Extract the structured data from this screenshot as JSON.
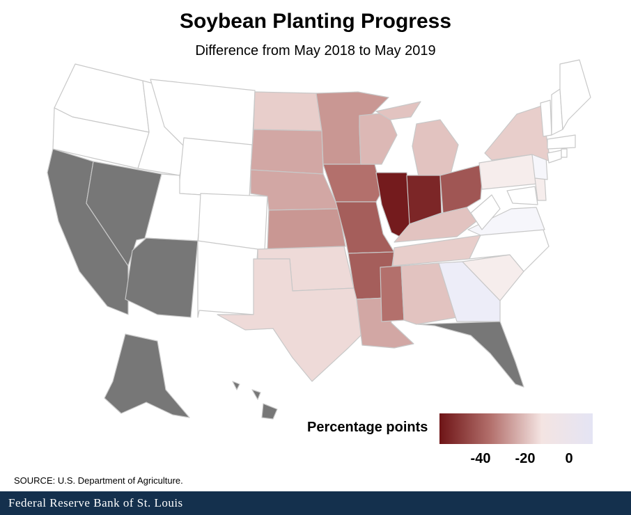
{
  "title": "Soybean Planting Progress",
  "subtitle": "Difference from May 2018 to May 2019",
  "legend": {
    "title": "Percentage points",
    "ticks": [
      "-40",
      "-20",
      "0"
    ],
    "colors": [
      "#6e1416",
      "#b3706c",
      "#f4e4e2",
      "#e4e4f4"
    ]
  },
  "source": "SOURCE: U.S. Department of Agriculture.",
  "footer": {
    "brand": "Federal Reserve Bank of St. Louis"
  },
  "colors": {
    "no_data": "#777777",
    "zero": "#ffffff",
    "footer_bg": "#14304d"
  },
  "chart_data": {
    "type": "choropleth",
    "metric": "Percentage points",
    "states": [
      {
        "state": "ND",
        "value": -8
      },
      {
        "state": "SD",
        "value": -15
      },
      {
        "state": "NE",
        "value": -15
      },
      {
        "state": "KS",
        "value": -18
      },
      {
        "state": "MN",
        "value": -18
      },
      {
        "state": "IA",
        "value": -25
      },
      {
        "state": "MO",
        "value": -30
      },
      {
        "state": "AR",
        "value": -30
      },
      {
        "state": "WI",
        "value": -12
      },
      {
        "state": "MI",
        "value": -10
      },
      {
        "state": "IL",
        "value": -48
      },
      {
        "state": "IN",
        "value": -45
      },
      {
        "state": "OH",
        "value": -32
      },
      {
        "state": "KY",
        "value": -10
      },
      {
        "state": "TN",
        "value": -8
      },
      {
        "state": "MS",
        "value": -25
      },
      {
        "state": "LA",
        "value": -15
      },
      {
        "state": "AL",
        "value": -10
      },
      {
        "state": "GA",
        "value": 2
      },
      {
        "state": "SC",
        "value": -3
      },
      {
        "state": "NC",
        "value": 0
      },
      {
        "state": "VA",
        "value": 1
      },
      {
        "state": "WV",
        "value": 0
      },
      {
        "state": "PA",
        "value": -3
      },
      {
        "state": "NY",
        "value": -8
      },
      {
        "state": "NJ",
        "value": 1
      },
      {
        "state": "DE",
        "value": -3
      },
      {
        "state": "MD",
        "value": 0
      },
      {
        "state": "TX",
        "value": -6
      },
      {
        "state": "OK",
        "value": -6
      },
      {
        "state": "CA",
        "value": null
      },
      {
        "state": "NV",
        "value": null
      },
      {
        "state": "AZ",
        "value": null
      },
      {
        "state": "FL",
        "value": null
      },
      {
        "state": "AK",
        "value": null
      },
      {
        "state": "HI",
        "value": null
      }
    ]
  }
}
